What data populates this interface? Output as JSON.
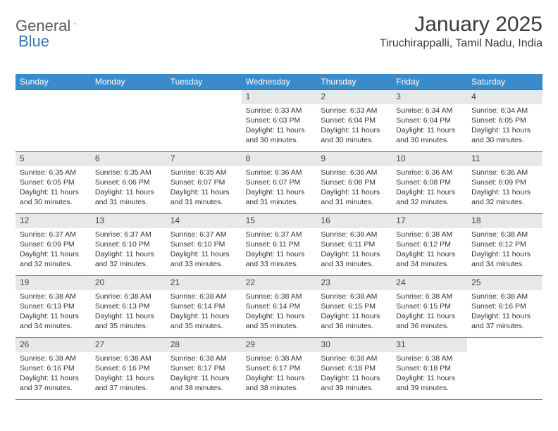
{
  "brand": {
    "part1": "General",
    "part2": "Blue"
  },
  "title": "January 2025",
  "location": "Tiruchirappalli, Tamil Nadu, India",
  "colors": {
    "header_bg": "#3b8bca",
    "header_text": "#ffffff",
    "divider": "#2f6faa",
    "daynum_bg": "#e8e8e8",
    "text": "#333333"
  },
  "day_names": [
    "Sunday",
    "Monday",
    "Tuesday",
    "Wednesday",
    "Thursday",
    "Friday",
    "Saturday"
  ],
  "grid": {
    "leading_blanks": 3,
    "days": [
      {
        "n": "1",
        "sunrise": "6:33 AM",
        "sunset": "6:03 PM",
        "daylight": "11 hours and 30 minutes."
      },
      {
        "n": "2",
        "sunrise": "6:33 AM",
        "sunset": "6:04 PM",
        "daylight": "11 hours and 30 minutes."
      },
      {
        "n": "3",
        "sunrise": "6:34 AM",
        "sunset": "6:04 PM",
        "daylight": "11 hours and 30 minutes."
      },
      {
        "n": "4",
        "sunrise": "6:34 AM",
        "sunset": "6:05 PM",
        "daylight": "11 hours and 30 minutes."
      },
      {
        "n": "5",
        "sunrise": "6:35 AM",
        "sunset": "6:05 PM",
        "daylight": "11 hours and 30 minutes."
      },
      {
        "n": "6",
        "sunrise": "6:35 AM",
        "sunset": "6:06 PM",
        "daylight": "11 hours and 31 minutes."
      },
      {
        "n": "7",
        "sunrise": "6:35 AM",
        "sunset": "6:07 PM",
        "daylight": "11 hours and 31 minutes."
      },
      {
        "n": "8",
        "sunrise": "6:36 AM",
        "sunset": "6:07 PM",
        "daylight": "11 hours and 31 minutes."
      },
      {
        "n": "9",
        "sunrise": "6:36 AM",
        "sunset": "6:08 PM",
        "daylight": "11 hours and 31 minutes."
      },
      {
        "n": "10",
        "sunrise": "6:36 AM",
        "sunset": "6:08 PM",
        "daylight": "11 hours and 32 minutes."
      },
      {
        "n": "11",
        "sunrise": "6:36 AM",
        "sunset": "6:09 PM",
        "daylight": "11 hours and 32 minutes."
      },
      {
        "n": "12",
        "sunrise": "6:37 AM",
        "sunset": "6:09 PM",
        "daylight": "11 hours and 32 minutes."
      },
      {
        "n": "13",
        "sunrise": "6:37 AM",
        "sunset": "6:10 PM",
        "daylight": "11 hours and 32 minutes."
      },
      {
        "n": "14",
        "sunrise": "6:37 AM",
        "sunset": "6:10 PM",
        "daylight": "11 hours and 33 minutes."
      },
      {
        "n": "15",
        "sunrise": "6:37 AM",
        "sunset": "6:11 PM",
        "daylight": "11 hours and 33 minutes."
      },
      {
        "n": "16",
        "sunrise": "6:38 AM",
        "sunset": "6:11 PM",
        "daylight": "11 hours and 33 minutes."
      },
      {
        "n": "17",
        "sunrise": "6:38 AM",
        "sunset": "6:12 PM",
        "daylight": "11 hours and 34 minutes."
      },
      {
        "n": "18",
        "sunrise": "6:38 AM",
        "sunset": "6:12 PM",
        "daylight": "11 hours and 34 minutes."
      },
      {
        "n": "19",
        "sunrise": "6:38 AM",
        "sunset": "6:13 PM",
        "daylight": "11 hours and 34 minutes."
      },
      {
        "n": "20",
        "sunrise": "6:38 AM",
        "sunset": "6:13 PM",
        "daylight": "11 hours and 35 minutes."
      },
      {
        "n": "21",
        "sunrise": "6:38 AM",
        "sunset": "6:14 PM",
        "daylight": "11 hours and 35 minutes."
      },
      {
        "n": "22",
        "sunrise": "6:38 AM",
        "sunset": "6:14 PM",
        "daylight": "11 hours and 35 minutes."
      },
      {
        "n": "23",
        "sunrise": "6:38 AM",
        "sunset": "6:15 PM",
        "daylight": "11 hours and 36 minutes."
      },
      {
        "n": "24",
        "sunrise": "6:38 AM",
        "sunset": "6:15 PM",
        "daylight": "11 hours and 36 minutes."
      },
      {
        "n": "25",
        "sunrise": "6:38 AM",
        "sunset": "6:16 PM",
        "daylight": "11 hours and 37 minutes."
      },
      {
        "n": "26",
        "sunrise": "6:38 AM",
        "sunset": "6:16 PM",
        "daylight": "11 hours and 37 minutes."
      },
      {
        "n": "27",
        "sunrise": "6:38 AM",
        "sunset": "6:16 PM",
        "daylight": "11 hours and 37 minutes."
      },
      {
        "n": "28",
        "sunrise": "6:38 AM",
        "sunset": "6:17 PM",
        "daylight": "11 hours and 38 minutes."
      },
      {
        "n": "29",
        "sunrise": "6:38 AM",
        "sunset": "6:17 PM",
        "daylight": "11 hours and 38 minutes."
      },
      {
        "n": "30",
        "sunrise": "6:38 AM",
        "sunset": "6:18 PM",
        "daylight": "11 hours and 39 minutes."
      },
      {
        "n": "31",
        "sunrise": "6:38 AM",
        "sunset": "6:18 PM",
        "daylight": "11 hours and 39 minutes."
      }
    ]
  },
  "labels": {
    "sunrise": "Sunrise: ",
    "sunset": "Sunset: ",
    "daylight": "Daylight: "
  }
}
